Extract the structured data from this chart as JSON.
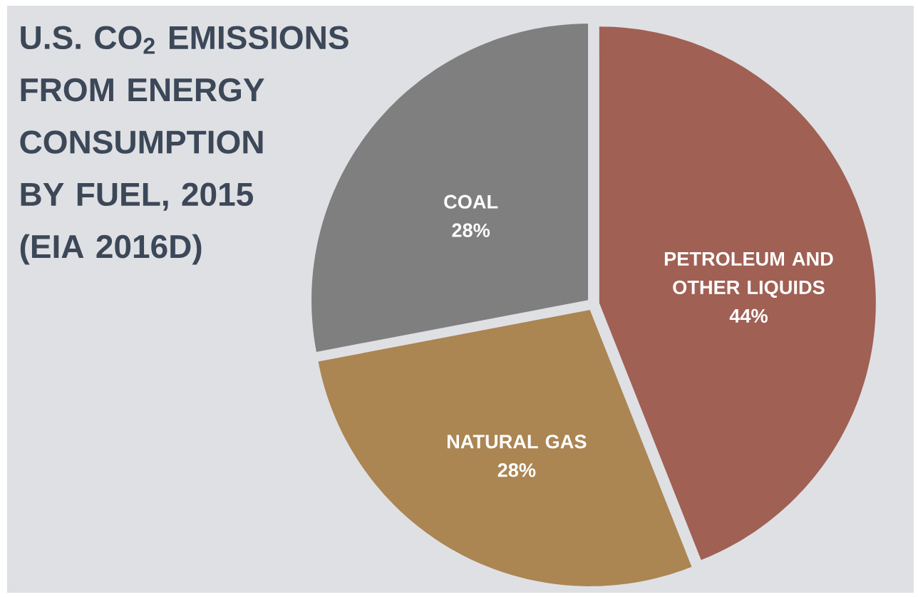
{
  "chart_data": {
    "type": "pie",
    "title": "U.S. CO$_{2}$ EMISSIONS FROM ENERGY CONSUMPTION BY FUEL, 2015 (EIA 2016D)",
    "categories": [
      "PETROLEUM AND OTHER LIQUIDS",
      "NATURAL GAS",
      "COAL"
    ],
    "values": [
      44,
      28,
      28
    ],
    "value_labels": [
      "44%",
      "28%",
      "28%"
    ],
    "colors": [
      "#a06054",
      "#ab8552",
      "#7f7f7f"
    ]
  }
}
